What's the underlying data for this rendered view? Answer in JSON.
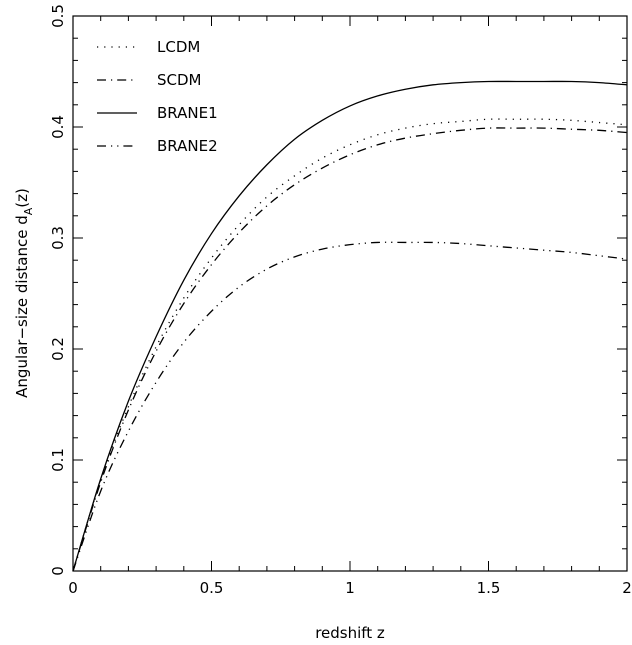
{
  "chart_data": {
    "type": "line",
    "title": "",
    "xlabel": "redshift  z",
    "ylabel_main": "Angular−size  distance  d",
    "ylabel_sub": "A",
    "ylabel_tail": "(z)",
    "xlim": [
      0,
      2
    ],
    "ylim": [
      0,
      0.5
    ],
    "xticks": [
      0,
      0.5,
      1,
      1.5,
      2
    ],
    "xtick_labels": [
      "0",
      "0.5",
      "1",
      "1.5",
      "2"
    ],
    "yticks": [
      0,
      0.1,
      0.2,
      0.3,
      0.4,
      0.5
    ],
    "ytick_labels": [
      "0",
      "0.1",
      "0.2",
      "0.3",
      "0.4",
      "0.5"
    ],
    "grid": false,
    "legend_position": "top-left",
    "series": [
      {
        "name": "LCDM",
        "dash": "dotted",
        "x": [
          0,
          0.1,
          0.2,
          0.3,
          0.4,
          0.5,
          0.6,
          0.7,
          0.8,
          0.9,
          1.0,
          1.1,
          1.2,
          1.3,
          1.4,
          1.5,
          1.6,
          1.7,
          1.8,
          1.9,
          2.0
        ],
        "y": [
          0,
          0.082,
          0.148,
          0.202,
          0.246,
          0.282,
          0.312,
          0.337,
          0.356,
          0.372,
          0.384,
          0.393,
          0.399,
          0.403,
          0.405,
          0.407,
          0.407,
          0.407,
          0.406,
          0.404,
          0.402
        ]
      },
      {
        "name": "SCDM",
        "dash": "dashdot",
        "x": [
          0,
          0.1,
          0.2,
          0.3,
          0.4,
          0.5,
          0.6,
          0.7,
          0.8,
          0.9,
          1.0,
          1.1,
          1.2,
          1.3,
          1.4,
          1.5,
          1.6,
          1.7,
          1.8,
          1.9,
          2.0
        ],
        "y": [
          0,
          0.08,
          0.145,
          0.198,
          0.241,
          0.276,
          0.305,
          0.329,
          0.348,
          0.363,
          0.375,
          0.384,
          0.39,
          0.394,
          0.397,
          0.399,
          0.399,
          0.399,
          0.398,
          0.397,
          0.395
        ]
      },
      {
        "name": "BRANE1",
        "dash": "solid",
        "x": [
          0,
          0.1,
          0.2,
          0.3,
          0.4,
          0.5,
          0.6,
          0.7,
          0.8,
          0.9,
          1.0,
          1.1,
          1.2,
          1.3,
          1.4,
          1.5,
          1.6,
          1.7,
          1.8,
          1.9,
          2.0
        ],
        "y": [
          0,
          0.083,
          0.153,
          0.211,
          0.262,
          0.304,
          0.338,
          0.366,
          0.389,
          0.406,
          0.419,
          0.428,
          0.434,
          0.438,
          0.44,
          0.441,
          0.441,
          0.441,
          0.441,
          0.44,
          0.438
        ]
      },
      {
        "name": "BRANE2",
        "dash": "dashdotdot",
        "x": [
          0,
          0.1,
          0.2,
          0.3,
          0.4,
          0.5,
          0.6,
          0.7,
          0.8,
          0.9,
          1.0,
          1.1,
          1.2,
          1.3,
          1.4,
          1.5,
          1.6,
          1.7,
          1.8,
          1.9,
          2.0
        ],
        "y": [
          0,
          0.072,
          0.126,
          0.17,
          0.206,
          0.234,
          0.256,
          0.272,
          0.283,
          0.29,
          0.294,
          0.296,
          0.296,
          0.296,
          0.295,
          0.293,
          0.291,
          0.289,
          0.287,
          0.284,
          0.281
        ]
      }
    ]
  }
}
